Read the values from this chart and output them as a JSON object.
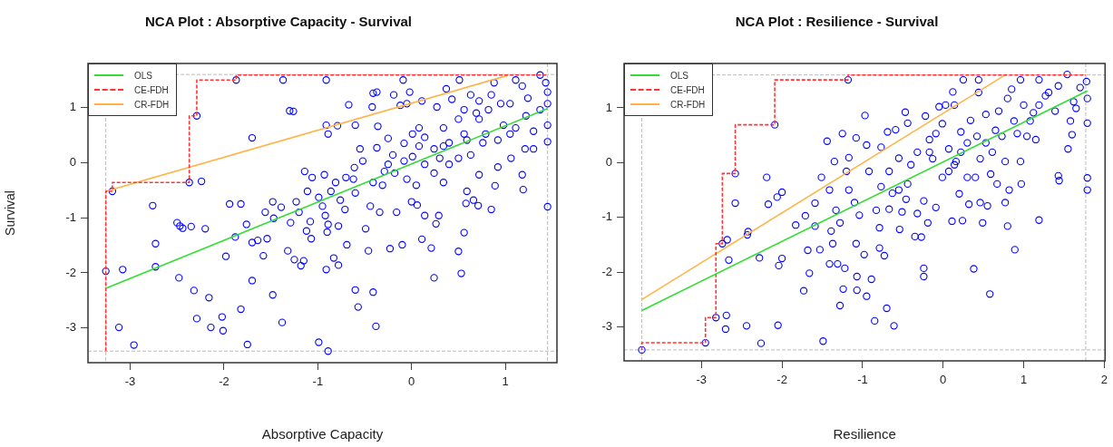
{
  "chart_data": [
    {
      "type": "scatter",
      "title": "NCA Plot : Absorptive Capacity - Survival",
      "xlabel": "Absorptive Capacity",
      "ylabel": "Survival",
      "xlim": [
        -3.45,
        1.55
      ],
      "ylim": [
        -3.63,
        1.8
      ],
      "xticks": [
        -3,
        -2,
        -1,
        0,
        1
      ],
      "yticks": [
        -3,
        -2,
        -1,
        0,
        1
      ],
      "grid": false,
      "legend": "top left",
      "ref_lines": [
        {
          "axis": "x",
          "value": -3.26,
          "color": "#bbbbbb",
          "line_style": "dashed"
        },
        {
          "axis": "x",
          "value": 1.45,
          "color": "#bbbbbb",
          "line_style": "dashed"
        },
        {
          "axis": "y",
          "value": -3.42,
          "color": "#bbbbbb",
          "line_style": "dashed"
        },
        {
          "axis": "y",
          "value": 1.6,
          "color": "#bbbbbb",
          "line_style": "dashed"
        }
      ],
      "series": [
        {
          "marker": "circle",
          "color": "#0000ff",
          "x": [
            -3.26,
            -3.19,
            -3.08,
            -3.12,
            -2.96,
            -2.76,
            -2.73,
            -2.73,
            -2.5,
            -2.47,
            -2.44,
            -2.35,
            -2.48,
            -2.37,
            -2.24,
            -2.29,
            -2.2,
            -2.32,
            -2.16,
            -2.29,
            -2.14,
            -2.02,
            -2.01,
            -1.98,
            -1.94,
            -1.87,
            -1.88,
            -1.82,
            -1.82,
            -1.76,
            -1.75,
            -1.7,
            -1.7,
            -1.64,
            -1.7,
            -1.58,
            -1.54,
            -1.56,
            -1.48,
            -1.47,
            -1.48,
            -1.39,
            -1.37,
            -1.38,
            -1.32,
            -1.29,
            -1.3,
            -1.26,
            -1.25,
            -1.23,
            -1.18,
            -1.15,
            -1.2,
            -1.14,
            -1.11,
            -1.08,
            -1.07,
            -1.12,
            -1.06,
            -0.99,
            -0.93,
            -0.91,
            -0.91,
            -0.89,
            -0.91,
            -0.89,
            -0.92,
            -0.89,
            -0.9,
            -0.83,
            -0.78,
            -0.78,
            -0.79,
            -0.99,
            -0.95,
            -0.86,
            -0.81,
            -0.76,
            -0.71,
            -0.69,
            -0.67,
            -0.7,
            -0.62,
            -0.6,
            -0.61,
            -0.6,
            -0.6,
            -0.57,
            -0.55,
            -0.52,
            -0.49,
            -0.46,
            -0.44,
            -0.42,
            -0.41,
            -0.37,
            -0.41,
            -0.38,
            -0.37,
            -0.36,
            -0.34,
            -0.29,
            -0.25,
            -0.23,
            -0.2,
            -0.19,
            -0.16,
            -0.12,
            -0.1,
            -0.09,
            -0.05,
            -0.08,
            -0.02,
            0.0,
            0.01,
            0.05,
            0.06,
            0.11,
            0.11,
            0.14,
            0.21,
            0.24,
            0.26,
            0.29,
            0.24,
            0.27,
            0.34,
            0.37,
            0.4,
            0.43,
            0.51,
            0.5,
            0.53,
            0.56,
            0.58,
            0.59,
            0.66,
            0.71,
            0.63,
            0.72,
            0.85,
            0.89,
            0.92,
            0.72,
            0.79,
            0.88,
            0.95,
            1.05,
            1.06,
            1.11,
            1.18,
            1.19,
            1.21,
            1.22,
            1.18,
            1.3,
            1.37,
            1.43,
            1.45,
            1.45,
            1.45,
            1.45,
            1.45,
            1.37,
            1.3,
            0.08,
            0.14,
            0.24,
            0.34,
            0.4,
            0.5,
            0.56,
            0.63,
            0.69,
            0.82,
            0.98,
            1.11,
            1.05,
            -0.08,
            -0.18,
            -0.31,
            -0.41,
            -0.25,
            -0.05,
            0.14,
            0.3,
            0.5,
            0.34,
            0.01,
            0.08,
            0.59,
            0.76,
            0.92,
            0.85,
            0.72,
            0.56,
            1.24
          ],
          "values": [
            -1.97,
            -0.52,
            -1.94,
            -2.99,
            -3.31,
            -0.78,
            -1.47,
            -1.89,
            -1.09,
            -1.15,
            -1.19,
            -1.16,
            -2.09,
            -0.36,
            -0.34,
            0.85,
            -1.2,
            -2.32,
            -2.45,
            -2.83,
            -2.99,
            -2.8,
            -3.05,
            -1.7,
            -0.75,
            1.5,
            -1.35,
            -0.75,
            -2.66,
            -1.12,
            -3.3,
            0.45,
            -1.45,
            -1.41,
            -2.14,
            -1.69,
            -1.38,
            -0.9,
            -0.71,
            -1.01,
            -2.4,
            -0.81,
            1.5,
            -2.9,
            -1.6,
            -1.09,
            0.94,
            0.93,
            -1.76,
            -0.71,
            -1.87,
            -1.78,
            -0.9,
            -0.16,
            -0.52,
            -1.07,
            -1.38,
            -1.24,
            -0.27,
            -3.26,
            -0.22,
            1.5,
            0.68,
            0.52,
            -1.94,
            -3.42,
            -0.96,
            -1.12,
            -1.26,
            -1.73,
            -1.86,
            -1.15,
            0.67,
            -0.63,
            -0.79,
            -0.52,
            -0.36,
            -0.68,
            -0.85,
            -1.49,
            1.05,
            -0.27,
            -0.3,
            0.68,
            -0.09,
            -0.55,
            -2.31,
            -2.62,
            0.25,
            0.03,
            -1.2,
            -1.6,
            -0.79,
            1.01,
            1.26,
            1.28,
            -2.35,
            -2.97,
            0.27,
            0.66,
            -0.9,
            -0.16,
            0.44,
            -1.56,
            0.14,
            1.23,
            -0.9,
            1.04,
            -1.49,
            1.5,
            1.07,
            0.03,
            1.28,
            -0.71,
            0.11,
            -0.41,
            -0.77,
            1.12,
            -1.39,
            -0.96,
            -1.55,
            -2.09,
            -1.11,
            -0.96,
            -0.19,
            1.01,
            -0.36,
            1.34,
            -0.03,
            1.15,
            1.5,
            -1.61,
            -2.01,
            -1.27,
            -0.74,
            -0.52,
            -0.68,
            -0.78,
            1.23,
            -0.22,
            -0.85,
            -0.42,
            -0.08,
            0.79,
            0.52,
            1.45,
            1.07,
            0.52,
            0.08,
            1.5,
            -0.22,
            -0.49,
            0.25,
            0.85,
            1.39,
            0.25,
            1.59,
            1.45,
            1.28,
            1.07,
            0.68,
            0.38,
            -0.8,
            0.96,
            0.57,
            0.63,
            0.46,
            0.25,
            0.63,
            0.36,
            0.79,
            0.52,
            0.14,
            0.9,
            0.96,
            0.68,
            0.63,
            1.07,
            0.35,
            -0.19,
            -0.41,
            -0.36,
            -0.03,
            -0.3,
            -0.03,
            0.08,
            0.08,
            0.3,
            0.52,
            0.3,
            0.41,
            0.36,
            0.41,
            1.23,
            1.12,
            0.96,
            1.17
          ]
        },
        {
          "type": "line",
          "name": "OLS",
          "color": "#33dd33",
          "line_style": "solid",
          "x": [
            -3.26,
            1.45
          ],
          "values": [
            -2.28,
            0.98
          ]
        },
        {
          "type": "step",
          "name": "CE-FDH",
          "color": "#ff3333",
          "line_style": "dashed",
          "x": [
            -3.26,
            -3.26,
            -3.19,
            -2.37,
            -2.29,
            -1.87,
            1.37,
            1.45
          ],
          "values": [
            -3.42,
            -1.97,
            -0.52,
            -0.36,
            0.85,
            1.5,
            1.59,
            1.59
          ]
        },
        {
          "type": "line",
          "name": "CR-FDH",
          "color": "#ffb347",
          "line_style": "solid",
          "x": [
            -3.26,
            1.02
          ],
          "values": [
            -0.52,
            1.58
          ]
        }
      ]
    },
    {
      "type": "scatter",
      "title": "NCA Plot : Resilience - Survival",
      "xlabel": "Resilience",
      "xlim": [
        -3.96,
        2.01
      ],
      "ylim": [
        -3.62,
        1.81
      ],
      "xticks": [
        -3,
        -2,
        -1,
        0,
        1,
        2
      ],
      "yticks": [
        -3,
        -2,
        -1,
        0,
        1
      ],
      "grid": false,
      "legend": "top left",
      "ref_lines": [
        {
          "axis": "x",
          "value": -3.74,
          "color": "#bbbbbb",
          "line_style": "dashed"
        },
        {
          "axis": "x",
          "value": 1.77,
          "color": "#bbbbbb",
          "line_style": "dashed"
        },
        {
          "axis": "y",
          "value": -3.42,
          "color": "#bbbbbb",
          "line_style": "dashed"
        },
        {
          "axis": "y",
          "value": 1.6,
          "color": "#bbbbbb",
          "line_style": "dashed"
        }
      ],
      "series": [
        {
          "marker": "circle",
          "color": "#0000ff",
          "x": [
            -3.74,
            -2.95,
            -2.82,
            -2.69,
            -2.7,
            -2.74,
            -2.68,
            -2.66,
            -2.58,
            -2.58,
            -2.44,
            -2.42,
            -2.43,
            -2.28,
            -2.26,
            -2.19,
            -2.17,
            -2.09,
            -2.06,
            -2.0,
            -2.05,
            -2.04,
            -2.0,
            -1.83,
            -1.73,
            -1.71,
            -1.68,
            -1.66,
            -1.59,
            -1.59,
            -1.53,
            -1.51,
            -1.49,
            -1.44,
            -1.41,
            -1.41,
            -1.39,
            -1.37,
            -1.35,
            -1.33,
            -1.31,
            -1.28,
            -1.28,
            -1.25,
            -1.24,
            -1.22,
            -1.2,
            -1.18,
            -1.17,
            -1.17,
            -1.1,
            -1.08,
            -1.08,
            -1.07,
            -1.07,
            -1.04,
            -0.98,
            -0.97,
            -0.95,
            -0.95,
            -0.92,
            -0.89,
            -0.85,
            -0.83,
            -0.79,
            -0.79,
            -0.77,
            -0.77,
            -0.73,
            -0.7,
            -0.69,
            -0.67,
            -0.63,
            -0.61,
            -0.59,
            -0.55,
            -0.54,
            -0.51,
            -0.47,
            -0.46,
            -0.44,
            -0.4,
            -0.35,
            -0.32,
            -0.27,
            -0.24,
            -0.24,
            -0.24,
            -0.22,
            -0.19,
            -0.17,
            -0.09,
            -0.05,
            -0.01,
            0.03,
            0.07,
            0.11,
            0.12,
            0.14,
            0.16,
            0.2,
            0.22,
            0.24,
            0.25,
            0.3,
            0.32,
            0.38,
            0.4,
            0.44,
            0.44,
            0.46,
            0.49,
            0.53,
            0.55,
            0.58,
            0.59,
            0.65,
            0.67,
            0.69,
            0.77,
            0.8,
            0.82,
            0.85,
            0.88,
            0.89,
            0.96,
            0.96,
            0.97,
            1.0,
            1.04,
            1.12,
            1.15,
            1.19,
            1.19,
            1.27,
            1.39,
            1.43,
            1.43,
            1.44,
            1.54,
            1.55,
            1.58,
            1.6,
            1.62,
            1.65,
            1.7,
            1.78,
            1.79,
            1.79,
            1.79,
            1.79,
            -0.17,
            -0.09,
            -0.01,
            0.14,
            0.22,
            0.34,
            0.42,
            0.53,
            0.61,
            0.73,
            0.8,
            0.92,
            1.08,
            1.19,
            1.31,
            -0.32,
            -0.44,
            -0.55,
            -0.67,
            0.07,
            0.3,
            -0.13,
            0.46,
            0.77
          ],
          "values": [
            -3.42,
            -3.29,
            -2.83,
            -2.79,
            -3.04,
            -1.48,
            -1.41,
            -1.78,
            -0.2,
            -0.74,
            -2.98,
            -1.26,
            -1.32,
            -1.74,
            -3.3,
            -0.27,
            -0.76,
            0.69,
            -0.63,
            -0.54,
            -2.97,
            -1.88,
            -1.75,
            -1.14,
            -2.34,
            -0.97,
            -1.6,
            -2.02,
            -0.74,
            -1.16,
            -1.59,
            -0.27,
            -3.26,
            0.39,
            -0.5,
            -1.85,
            -1.25,
            -1.48,
            0.02,
            -0.87,
            -1.85,
            -2.61,
            -1.1,
            0.53,
            -2.31,
            -1.93,
            -0.16,
            1.51,
            0.09,
            -0.5,
            -0.73,
            0.45,
            -1.48,
            -2.08,
            -2.33,
            -0.96,
            -1.68,
            0.86,
            -2.44,
            0.32,
            -0.16,
            -2.13,
            -2.89,
            -0.87,
            -1.19,
            -1.56,
            -0.44,
            0.28,
            -1.7,
            -2.66,
            0.56,
            -0.16,
            -0.56,
            -2.98,
            0.6,
            0.08,
            -1.22,
            -0.9,
            0.92,
            -0.67,
            0.72,
            -0.04,
            -1.35,
            -0.93,
            -1.36,
            -1.93,
            -2.08,
            -0.7,
            0.85,
            -1.1,
            0.42,
            -0.82,
            1.02,
            -0.27,
            1.05,
            0.25,
            -1.07,
            1.29,
            1.05,
            0.02,
            -0.57,
            0.56,
            -1.06,
            1.51,
            0.36,
            -0.76,
            -1.94,
            -0.27,
            1.51,
            1.28,
            -0.73,
            -1.1,
            0.36,
            -0.79,
            -2.4,
            -0.21,
            0.59,
            -0.39,
            0.94,
            -0.73,
            -1.16,
            -0.5,
            1.34,
            0.76,
            -1.59,
            1.51,
            0.02,
            -0.39,
            1.05,
            0.48,
            0.91,
            0.42,
            1.51,
            -1.05,
            1.22,
            0.94,
            1.4,
            -0.24,
            -0.33,
            1.61,
            0.25,
            0.76,
            0.51,
            1.11,
            0.99,
            1.37,
            1.48,
            1.17,
            0.72,
            -0.28,
            -0.5,
            0.19,
            0.53,
            0.71,
            -0.04,
            0.19,
            0.77,
            0.48,
            0.88,
            0.19,
            0.48,
            1.17,
            0.53,
            0.76,
            1.05,
            1.28,
            0.19,
            -0.39,
            -0.5,
            -0.85,
            -0.16,
            -0.27,
            0.07,
            0.07,
            0.02
          ]
        },
        {
          "type": "line",
          "name": "OLS",
          "color": "#33dd33",
          "line_style": "solid",
          "x": [
            -3.74,
            1.79
          ],
          "values": [
            -2.7,
            1.31
          ]
        },
        {
          "type": "step",
          "name": "CE-FDH",
          "color": "#ff3333",
          "line_style": "dashed",
          "x": [
            -3.74,
            -2.95,
            -2.82,
            -2.74,
            -2.58,
            -2.09,
            -1.18,
            1.39,
            1.77
          ],
          "values": [
            -3.42,
            -3.29,
            -2.83,
            -1.48,
            -0.2,
            0.69,
            1.51,
            1.6,
            1.6
          ]
        },
        {
          "type": "line",
          "name": "CR-FDH",
          "color": "#ffb347",
          "line_style": "solid",
          "x": [
            -3.74,
            0.78
          ],
          "values": [
            -2.5,
            1.61
          ]
        }
      ]
    }
  ]
}
